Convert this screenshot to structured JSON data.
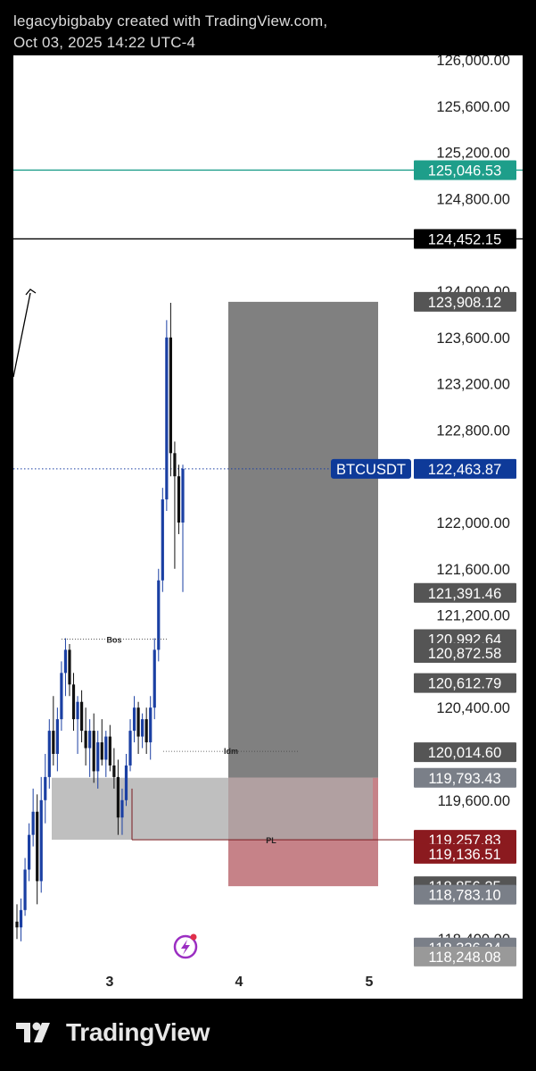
{
  "header": {
    "line1": "legacybigbaby created with TradingView.com,",
    "line2": "Oct 03, 2025 14:22 UTC-4"
  },
  "footer": {
    "brand": "TradingView"
  },
  "colors": {
    "up_candle": "#1a3fa3",
    "teal_line": "#1e9e8a",
    "stop_zone": "#808080",
    "target_zone": "#b35860",
    "demand_zone": "#a9a9a9",
    "symbol_tag": "#0e3a99",
    "dark_red_tag": "#8b1a1f"
  },
  "chart_data": {
    "type": "candlestick",
    "symbol": "BTCUSDT",
    "last_price": 122463.87,
    "ylim": [
      118000,
      126200
    ],
    "x_ticks": [
      "3",
      "4",
      "5"
    ],
    "y_tick_values": [
      126000,
      125600,
      125200,
      124800,
      124000,
      123600,
      123200,
      122800,
      122000,
      121600,
      121200,
      120400,
      119600,
      118400
    ],
    "y_tick_labels": [
      "126,000.00",
      "125,600.00",
      "125,200.00",
      "124,800.00",
      "124,000.00",
      "123,600.00",
      "123,200.00",
      "122,800.00",
      "122,000.00",
      "121,600.00",
      "121,200.00",
      "120,400.00",
      "119,600.00",
      "118,400.00"
    ],
    "price_tags": [
      {
        "value": 125046.53,
        "label": "125,046.53",
        "color": "#1e9e8a"
      },
      {
        "value": 124452.15,
        "label": "124,452.15",
        "color": "#000000"
      },
      {
        "value": 123908.12,
        "label": "123,908.12",
        "color": "#555555"
      },
      {
        "value": 122463.87,
        "label": "122,463.87",
        "color": "#0e3a99"
      },
      {
        "value": 121391.46,
        "label": "121,391.46",
        "color": "#555555"
      },
      {
        "value": 120992.64,
        "label": "120,992.64",
        "color": "#555555"
      },
      {
        "value": 120872.58,
        "label": "120,872.58",
        "color": "#555555"
      },
      {
        "value": 120612.79,
        "label": "120,612.79",
        "color": "#555555"
      },
      {
        "value": 120014.6,
        "label": "120,014.60",
        "color": "#555555"
      },
      {
        "value": 119793.43,
        "label": "119,793.43",
        "color": "#7a7f88"
      },
      {
        "value": 119257.83,
        "label": "119,257.83",
        "color": "#8b1a1f"
      },
      {
        "value": 119136.51,
        "label": "119,136.51",
        "color": "#8b1a1f"
      },
      {
        "value": 118856.25,
        "label": "118,856.25",
        "color": "#555555"
      },
      {
        "value": 118783.1,
        "label": "118,783.10",
        "color": "#7a7f88"
      },
      {
        "value": 118326.24,
        "label": "118,326.24",
        "color": "#7a7f88"
      },
      {
        "value": 118248.08,
        "label": "118,248.08",
        "color": "#999999"
      }
    ],
    "horizontal_lines": [
      {
        "value": 125046.53,
        "color": "#1e9e8a"
      },
      {
        "value": 124452.15,
        "color": "#000000"
      }
    ],
    "annotations": {
      "bos": {
        "label": "Bos",
        "value": 120992.64
      },
      "idm": {
        "label": "Idm",
        "value": 120014.6
      },
      "pl": {
        "label": "PL",
        "value": 119257.83
      }
    },
    "position": {
      "stop_top": 123908.12,
      "entry": 119793.43,
      "target_bottom": 118856.25
    },
    "demand_zone": {
      "top": 119793.43,
      "bottom": 119257.83
    },
    "candles": [
      {
        "o": 118550,
        "h": 118700,
        "l": 118400,
        "c": 118500
      },
      {
        "o": 118500,
        "h": 118750,
        "l": 118380,
        "c": 118650
      },
      {
        "o": 118650,
        "h": 119100,
        "l": 118600,
        "c": 119000
      },
      {
        "o": 119000,
        "h": 119400,
        "l": 118900,
        "c": 119300
      },
      {
        "o": 119300,
        "h": 119700,
        "l": 119200,
        "c": 119500
      },
      {
        "o": 119500,
        "h": 119650,
        "l": 118700,
        "c": 118900
      },
      {
        "o": 118900,
        "h": 119800,
        "l": 118800,
        "c": 119600
      },
      {
        "o": 119600,
        "h": 120000,
        "l": 119400,
        "c": 119800
      },
      {
        "o": 119800,
        "h": 120300,
        "l": 119700,
        "c": 120200
      },
      {
        "o": 120200,
        "h": 120500,
        "l": 119900,
        "c": 120000
      },
      {
        "o": 120000,
        "h": 120400,
        "l": 119850,
        "c": 120300
      },
      {
        "o": 120300,
        "h": 120800,
        "l": 120200,
        "c": 120700
      },
      {
        "o": 120700,
        "h": 121000,
        "l": 120500,
        "c": 120900
      },
      {
        "o": 120900,
        "h": 120950,
        "l": 120500,
        "c": 120600
      },
      {
        "o": 120600,
        "h": 120700,
        "l": 120200,
        "c": 120300
      },
      {
        "o": 120300,
        "h": 120500,
        "l": 120000,
        "c": 120450
      },
      {
        "o": 120450,
        "h": 120550,
        "l": 120100,
        "c": 120200
      },
      {
        "o": 120200,
        "h": 120400,
        "l": 119900,
        "c": 120050
      },
      {
        "o": 120050,
        "h": 120300,
        "l": 119800,
        "c": 120200
      },
      {
        "o": 120200,
        "h": 120350,
        "l": 119750,
        "c": 119850
      },
      {
        "o": 119850,
        "h": 120200,
        "l": 119700,
        "c": 120100
      },
      {
        "o": 120100,
        "h": 120300,
        "l": 119900,
        "c": 119950
      },
      {
        "o": 119950,
        "h": 120200,
        "l": 119800,
        "c": 120150
      },
      {
        "o": 120150,
        "h": 120250,
        "l": 119850,
        "c": 119900
      },
      {
        "o": 119900,
        "h": 120050,
        "l": 119700,
        "c": 119800
      },
      {
        "o": 119800,
        "h": 119950,
        "l": 119300,
        "c": 119450
      },
      {
        "o": 119450,
        "h": 119700,
        "l": 119300,
        "c": 119600
      },
      {
        "o": 119600,
        "h": 120000,
        "l": 119550,
        "c": 119900
      },
      {
        "o": 119900,
        "h": 120300,
        "l": 119850,
        "c": 120200
      },
      {
        "o": 120200,
        "h": 120500,
        "l": 120100,
        "c": 120400
      },
      {
        "o": 120400,
        "h": 120450,
        "l": 120000,
        "c": 120150
      },
      {
        "o": 120150,
        "h": 120350,
        "l": 120050,
        "c": 120300
      },
      {
        "o": 120300,
        "h": 120400,
        "l": 120000,
        "c": 120100
      },
      {
        "o": 120100,
        "h": 120500,
        "l": 119950,
        "c": 120400
      },
      {
        "o": 120400,
        "h": 121000,
        "l": 120300,
        "c": 120900
      },
      {
        "o": 120900,
        "h": 121600,
        "l": 120800,
        "c": 121500
      },
      {
        "o": 121500,
        "h": 122300,
        "l": 121400,
        "c": 122200
      },
      {
        "o": 122200,
        "h": 123750,
        "l": 122100,
        "c": 123600
      },
      {
        "o": 123600,
        "h": 123900,
        "l": 122400,
        "c": 122600
      },
      {
        "o": 122600,
        "h": 122700,
        "l": 121600,
        "c": 122400
      },
      {
        "o": 122400,
        "h": 122500,
        "l": 121900,
        "c": 122000
      },
      {
        "o": 122000,
        "h": 122500,
        "l": 121400,
        "c": 122464
      }
    ]
  }
}
